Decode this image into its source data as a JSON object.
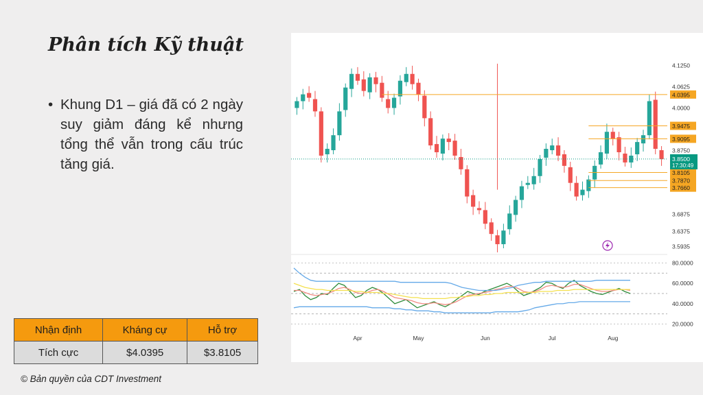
{
  "slide": {
    "title": "Phân tích Kỹ thuật",
    "bullet_text": "Khung D1 – giá đã có 2 ngày suy giảm đáng kể nhưng tổng thể vẫn trong cấu trúc tăng giá.",
    "copyright": "© Bản quyền của CDT Investment"
  },
  "summary_table": {
    "headers": [
      "Nhận định",
      "Kháng cự",
      "Hỗ trợ"
    ],
    "row": [
      "Tích cực",
      "$4.0395",
      "$3.8105"
    ]
  },
  "colors": {
    "bull": "#26a69a",
    "bear": "#ef5350",
    "header_fill": "#f59a0e",
    "level_line": "#f5a623",
    "current_price": "#089981"
  },
  "chart_data": [
    {
      "type": "candlestick",
      "price_ticks": [
        "4.1250",
        "4.0625",
        "4.0000",
        "3.8750",
        "3.6875",
        "3.6375",
        "3.5935"
      ],
      "ylim": [
        3.58,
        4.16
      ],
      "x_tick_labels": [
        "Apr",
        "May",
        "Jun",
        "Jul",
        "Aug"
      ],
      "x_tick_index": [
        10,
        20,
        31,
        42,
        52
      ],
      "levels": [
        4.0395,
        3.9475,
        3.9095,
        3.8105,
        3.787,
        3.766
      ],
      "level_labels": [
        "4.0395",
        "3.9475",
        "3.9095",
        "3.8105",
        "3.7870",
        "3.7660"
      ],
      "current_price": 3.85,
      "current_price_label": "3.8500",
      "countdown": "17:30:49",
      "close": [
        4.02,
        4.04,
        4.03,
        3.99,
        3.86,
        3.88,
        3.92,
        3.99,
        4.06,
        4.1,
        4.08,
        4.05,
        4.09,
        4.07,
        4.03,
        4.0,
        4.03,
        4.08,
        4.1,
        4.07,
        4.04,
        3.97,
        3.89,
        3.87,
        3.91,
        3.9,
        3.86,
        3.82,
        3.74,
        3.71,
        3.7,
        3.66,
        3.63,
        3.6,
        3.64,
        3.69,
        3.73,
        3.77,
        3.78,
        3.8,
        3.85,
        3.88,
        3.89,
        3.86,
        3.83,
        3.78,
        3.74,
        3.76,
        3.79,
        3.83,
        3.87,
        3.93,
        3.91,
        3.87,
        3.84,
        3.86,
        3.9,
        3.92,
        4.02,
        3.88,
        3.85
      ]
    },
    {
      "type": "line",
      "ylim": [
        15,
        85
      ],
      "y_ticks": [
        "80.0000",
        "60.0000",
        "40.0000",
        "20.0000"
      ],
      "series": [
        {
          "values": [
            52,
            54,
            48,
            44,
            46,
            50,
            49,
            55,
            60,
            58,
            52,
            46,
            48,
            53,
            56,
            54,
            50,
            45,
            40,
            42,
            44,
            40,
            36,
            38,
            40,
            42,
            39,
            37,
            40,
            44,
            48,
            52,
            50,
            49,
            52,
            54,
            56,
            58,
            60,
            57,
            52,
            48,
            50,
            53,
            56,
            61,
            60,
            57,
            55,
            60,
            63,
            58,
            55,
            52,
            50,
            49,
            51,
            53,
            55,
            52,
            50
          ],
          "color": "#2e8b3a"
        },
        {
          "values": [
            53,
            53,
            51,
            49,
            48,
            49,
            50,
            52,
            55,
            56,
            54,
            51,
            50,
            51,
            53,
            54,
            52,
            49,
            46,
            45,
            44,
            43,
            41,
            40,
            40,
            41,
            40,
            39,
            40,
            42,
            45,
            48,
            49,
            50,
            51,
            52,
            54,
            55,
            57,
            57,
            55,
            52,
            51,
            52,
            54,
            57,
            58,
            57,
            56,
            57,
            59,
            59,
            57,
            55,
            53,
            52,
            52,
            53,
            54,
            54,
            53
          ],
          "color": "#f28b82"
        },
        {
          "values": [
            60,
            58,
            56,
            55,
            54,
            54,
            53,
            53,
            53,
            53,
            53,
            52,
            52,
            51,
            51,
            51,
            50,
            50,
            49,
            48,
            47,
            46,
            46,
            45,
            45,
            45,
            45,
            45,
            46,
            46,
            47,
            47,
            48,
            48,
            49,
            49,
            50,
            50,
            51,
            51,
            51,
            51,
            51,
            51,
            52,
            52,
            52,
            53,
            53,
            53,
            54,
            54,
            54,
            54,
            54,
            54,
            54,
            54,
            54,
            54,
            54
          ],
          "color": "#f4e04d"
        },
        {
          "values": [
            75,
            70,
            66,
            63,
            62,
            62,
            62,
            62,
            62,
            62,
            62,
            62,
            62,
            62,
            62,
            62,
            62,
            62,
            62,
            61,
            61,
            61,
            61,
            61,
            61,
            61,
            61,
            61,
            60,
            58,
            56,
            55,
            54,
            53,
            53,
            53,
            53,
            54,
            55,
            56,
            58,
            59,
            60,
            61,
            61,
            62,
            62,
            62,
            62,
            62,
            62,
            62,
            62,
            62,
            63,
            63,
            63,
            63,
            63,
            63,
            63
          ],
          "color": "#64a9e8"
        },
        {
          "values": [
            36,
            37,
            37,
            37,
            37,
            37,
            37,
            37,
            37,
            37,
            37,
            37,
            37,
            37,
            36,
            36,
            36,
            36,
            35,
            35,
            34,
            34,
            33,
            33,
            33,
            32,
            32,
            31,
            31,
            31,
            31,
            31,
            31,
            31,
            31,
            31,
            32,
            32,
            32,
            32,
            32,
            33,
            34,
            36,
            37,
            38,
            39,
            40,
            40,
            41,
            41,
            42,
            42,
            42,
            42,
            42,
            42,
            42,
            42,
            42,
            42
          ],
          "color": "#64a9e8"
        }
      ],
      "reference_lines": [
        70,
        50,
        30
      ]
    }
  ]
}
